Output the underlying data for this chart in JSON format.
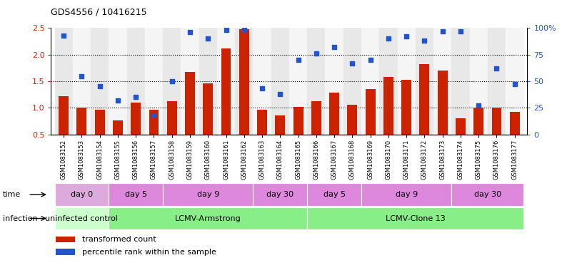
{
  "title": "GDS4556 / 10416215",
  "samples": [
    "GSM1083152",
    "GSM1083153",
    "GSM1083154",
    "GSM1083155",
    "GSM1083156",
    "GSM1083157",
    "GSM1083158",
    "GSM1083159",
    "GSM1083160",
    "GSM1083161",
    "GSM1083162",
    "GSM1083163",
    "GSM1083164",
    "GSM1083165",
    "GSM1083166",
    "GSM1083167",
    "GSM1083168",
    "GSM1083169",
    "GSM1083170",
    "GSM1083171",
    "GSM1083172",
    "GSM1083173",
    "GSM1083174",
    "GSM1083175",
    "GSM1083176",
    "GSM1083177"
  ],
  "bar_values": [
    1.22,
    1.01,
    0.96,
    0.76,
    1.1,
    0.97,
    1.12,
    1.67,
    1.46,
    2.12,
    2.48,
    0.96,
    0.86,
    1.02,
    1.12,
    1.28,
    1.06,
    1.35,
    1.58,
    1.52,
    1.82,
    1.7,
    0.8,
    1.0,
    1.0,
    0.93
  ],
  "dot_values": [
    93,
    55,
    45,
    32,
    35,
    18,
    50,
    96,
    90,
    98,
    98,
    43,
    38,
    70,
    76,
    82,
    67,
    70,
    90,
    92,
    88,
    97,
    97,
    27,
    62,
    47
  ],
  "ylim_left": [
    0.5,
    2.5
  ],
  "ylim_right": [
    0,
    100
  ],
  "yticks_left": [
    0.5,
    1.0,
    1.5,
    2.0,
    2.5
  ],
  "yticks_right": [
    0,
    25,
    50,
    75,
    100
  ],
  "ytick_labels_right": [
    "0",
    "25",
    "50",
    "75",
    "100%"
  ],
  "bar_color": "#cc2200",
  "dot_color": "#2255cc",
  "bg_color": "#ffffff",
  "infection_groups": [
    {
      "label": "uninfected control",
      "start": 0,
      "end": 3,
      "color": "#ccffcc"
    },
    {
      "label": "LCMV-Armstrong",
      "start": 3,
      "end": 14,
      "color": "#88ee88"
    },
    {
      "label": "LCMV-Clone 13",
      "start": 14,
      "end": 26,
      "color": "#88ee88"
    }
  ],
  "time_groups": [
    {
      "label": "day 0",
      "start": 0,
      "end": 3,
      "color": "#ddaadd"
    },
    {
      "label": "day 5",
      "start": 3,
      "end": 6,
      "color": "#dd88dd"
    },
    {
      "label": "day 9",
      "start": 6,
      "end": 11,
      "color": "#dd88dd"
    },
    {
      "label": "day 30",
      "start": 11,
      "end": 14,
      "color": "#dd88dd"
    },
    {
      "label": "day 5",
      "start": 14,
      "end": 17,
      "color": "#dd88dd"
    },
    {
      "label": "day 9",
      "start": 17,
      "end": 22,
      "color": "#dd88dd"
    },
    {
      "label": "day 30",
      "start": 22,
      "end": 26,
      "color": "#dd88dd"
    }
  ],
  "legend_items": [
    {
      "color": "#cc2200",
      "label": "transformed count"
    },
    {
      "color": "#2255cc",
      "label": "percentile rank within the sample"
    }
  ],
  "col_bg_even": "#e8e8e8",
  "col_bg_odd": "#f5f5f5"
}
